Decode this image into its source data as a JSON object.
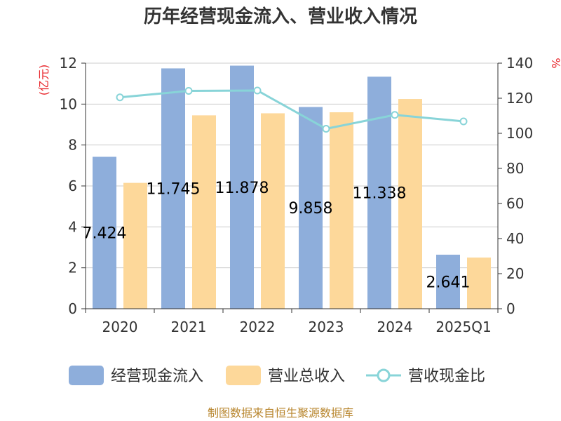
{
  "chart_data": {
    "type": "bar",
    "title": "历年经营现金流入、营业收入情况",
    "categories": [
      "2020",
      "2021",
      "2022",
      "2023",
      "2024",
      "2025Q1"
    ],
    "series": [
      {
        "name": "经营现金流入",
        "type": "bar",
        "axis": "left",
        "color": "#8eaedb",
        "values": [
          7.424,
          11.745,
          11.878,
          9.858,
          11.338,
          2.641
        ],
        "labels": [
          "7.424",
          "11.745",
          "11.878",
          "9.858",
          "11.338",
          "2.641"
        ]
      },
      {
        "name": "营业总收入",
        "type": "bar",
        "axis": "left",
        "color": "#fdd89a",
        "values": [
          6.15,
          9.45,
          9.55,
          9.6,
          10.25,
          2.5
        ]
      },
      {
        "name": "营收现金比",
        "type": "line",
        "axis": "right",
        "color": "#88d4d8",
        "values": [
          120.5,
          124.2,
          124.4,
          102.6,
          110.5,
          106.8
        ]
      }
    ],
    "y_left": {
      "unit": "(亿元)",
      "min": 0,
      "max": 12,
      "ticks": [
        0,
        2,
        4,
        6,
        8,
        10,
        12
      ]
    },
    "y_right": {
      "unit": "%",
      "min": 0,
      "max": 140,
      "ticks": [
        0,
        20,
        40,
        60,
        80,
        100,
        120,
        140
      ]
    },
    "grid": true,
    "legend_position": "bottom"
  },
  "source": "制图数据来自恒生聚源数据库"
}
